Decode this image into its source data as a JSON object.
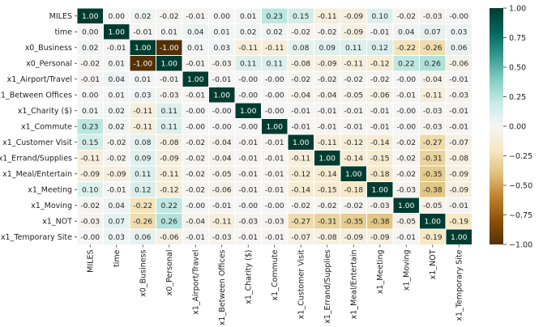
{
  "chart_data": {
    "type": "heatmap",
    "title": "",
    "xlabel": "",
    "ylabel": "",
    "labels": [
      "MILES",
      "time",
      "x0_Business",
      "x0_Personal",
      "x1_Airport/Travel",
      "x1_Between Offices",
      "x1_Charity ($)",
      "x1_Commute",
      "x1_Customer Visit",
      "x1_Errand/Supplies",
      "x1_Meal/Entertain",
      "x1_Meeting",
      "x1_Moving",
      "x1_NOT",
      "x1_Temporary Site"
    ],
    "values": [
      [
        1.0,
        0.0,
        0.02,
        -0.02,
        -0.01,
        0.0,
        0.01,
        0.23,
        0.15,
        -0.11,
        -0.09,
        0.1,
        -0.02,
        -0.03,
        -0.0
      ],
      [
        0.0,
        1.0,
        -0.01,
        0.01,
        0.04,
        0.01,
        0.02,
        0.02,
        -0.02,
        -0.02,
        -0.09,
        -0.01,
        0.04,
        0.07,
        0.03
      ],
      [
        0.02,
        -0.01,
        1.0,
        -1.0,
        0.01,
        0.03,
        -0.11,
        -0.11,
        0.08,
        0.09,
        0.11,
        0.12,
        -0.22,
        -0.26,
        0.06
      ],
      [
        -0.02,
        0.01,
        -1.0,
        1.0,
        -0.01,
        -0.03,
        0.11,
        0.11,
        -0.08,
        -0.09,
        -0.11,
        -0.12,
        0.22,
        0.26,
        -0.06
      ],
      [
        -0.01,
        0.04,
        0.01,
        -0.01,
        1.0,
        -0.01,
        -0.0,
        -0.0,
        -0.02,
        -0.02,
        -0.02,
        -0.02,
        -0.0,
        -0.04,
        -0.01
      ],
      [
        0.0,
        0.01,
        0.03,
        -0.03,
        -0.01,
        1.0,
        -0.0,
        -0.0,
        -0.04,
        -0.04,
        -0.05,
        -0.06,
        -0.01,
        -0.11,
        -0.03
      ],
      [
        0.01,
        0.02,
        -0.11,
        0.11,
        -0.0,
        -0.0,
        1.0,
        -0.0,
        -0.01,
        -0.01,
        -0.01,
        -0.01,
        -0.0,
        -0.03,
        -0.01
      ],
      [
        0.23,
        0.02,
        -0.11,
        0.11,
        -0.0,
        -0.0,
        -0.0,
        1.0,
        -0.01,
        -0.01,
        -0.01,
        -0.01,
        -0.0,
        -0.03,
        -0.01
      ],
      [
        0.15,
        -0.02,
        0.08,
        -0.08,
        -0.02,
        -0.04,
        -0.01,
        -0.01,
        1.0,
        -0.11,
        -0.12,
        -0.14,
        -0.02,
        -0.27,
        -0.07
      ],
      [
        -0.11,
        -0.02,
        0.09,
        -0.09,
        -0.02,
        -0.04,
        -0.01,
        -0.01,
        -0.11,
        1.0,
        -0.14,
        -0.15,
        -0.02,
        -0.31,
        -0.08
      ],
      [
        -0.09,
        -0.09,
        0.11,
        -0.11,
        -0.02,
        -0.05,
        -0.01,
        -0.01,
        -0.12,
        -0.14,
        1.0,
        -0.18,
        -0.02,
        -0.35,
        -0.09
      ],
      [
        0.1,
        -0.01,
        0.12,
        -0.12,
        -0.02,
        -0.06,
        -0.01,
        -0.01,
        -0.14,
        -0.15,
        -0.18,
        1.0,
        -0.03,
        -0.38,
        -0.09
      ],
      [
        -0.02,
        0.04,
        -0.22,
        0.22,
        -0.0,
        -0.01,
        -0.0,
        -0.0,
        -0.02,
        -0.02,
        -0.02,
        -0.03,
        1.0,
        -0.05,
        -0.01
      ],
      [
        -0.03,
        0.07,
        -0.26,
        0.26,
        -0.04,
        -0.11,
        -0.03,
        -0.03,
        -0.27,
        -0.31,
        -0.35,
        -0.38,
        -0.05,
        1.0,
        -0.19
      ],
      [
        -0.0,
        0.03,
        0.06,
        -0.06,
        -0.01,
        -0.03,
        -0.01,
        -0.01,
        -0.07,
        -0.08,
        -0.09,
        -0.09,
        -0.01,
        -0.19,
        1.0
      ]
    ],
    "vmin": -1.0,
    "vmax": 1.0,
    "colormap": "BrBG",
    "colorbar_ticks": [
      1.0,
      0.75,
      0.5,
      0.25,
      0.0,
      -0.25,
      -0.5,
      -0.75,
      -1.0
    ],
    "colorbar_tick_labels": [
      "1.00",
      "0.75",
      "0.50",
      "0.25",
      "0.00",
      "−0.25",
      "−0.50",
      "−0.75",
      "−1.00"
    ],
    "cell_border_color": "#ffffff"
  }
}
